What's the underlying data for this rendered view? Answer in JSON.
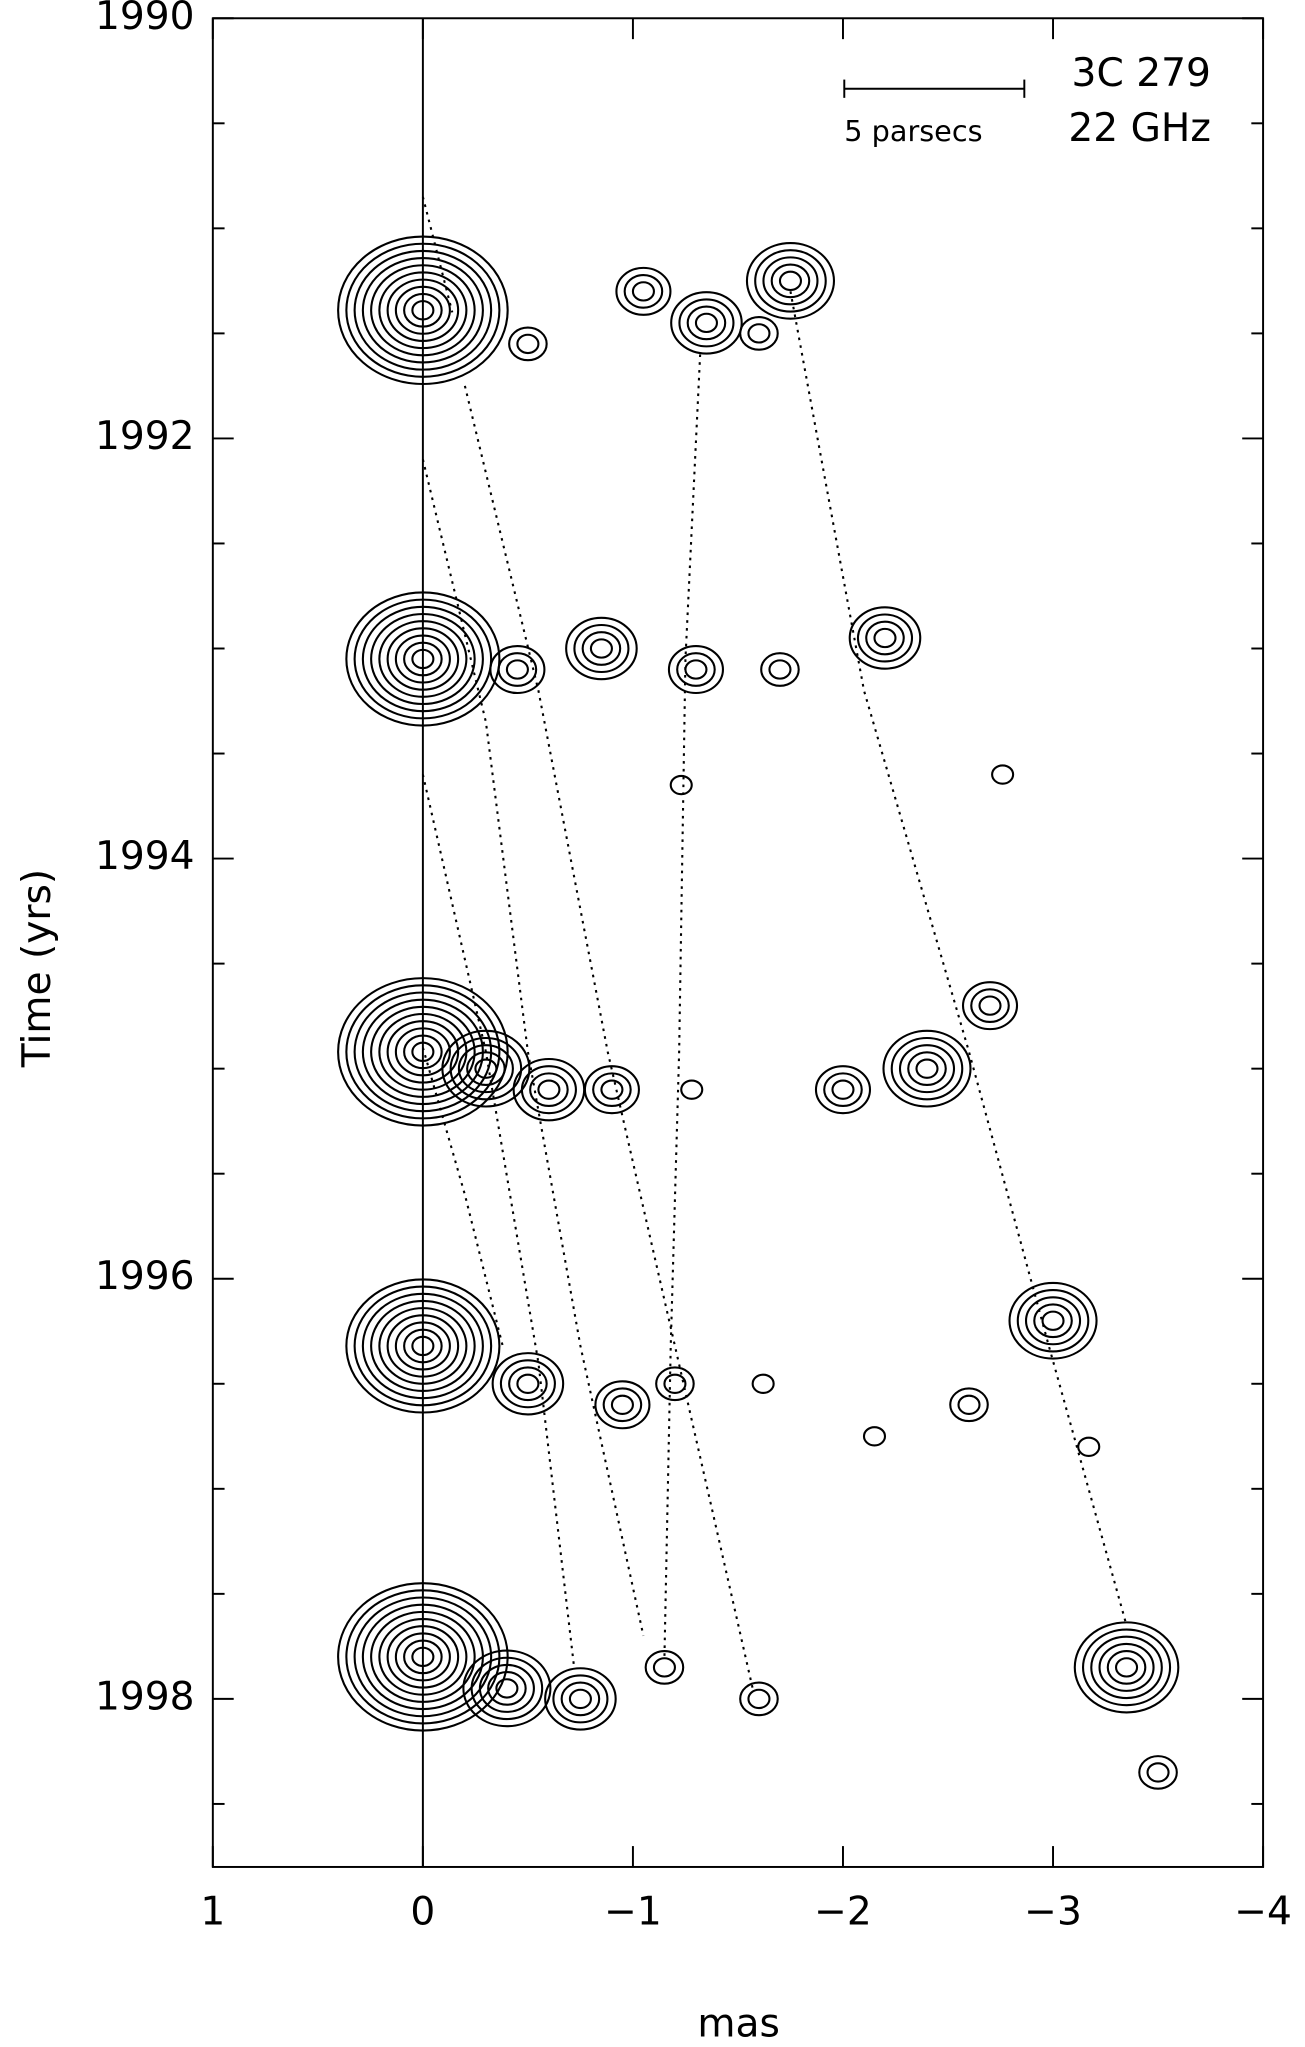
{
  "chart_data": {
    "type": "contour-map",
    "title": "3C 279",
    "subtitle": "22 GHz",
    "scale_bar_label": "5 parsecs",
    "x_label": "mas",
    "y_label": "Time (yrs)",
    "xlim": [
      1,
      -4
    ],
    "ylim": [
      1990,
      1998.8
    ],
    "xticks": [
      1,
      0,
      {
        "value": -1,
        "label": "−1"
      },
      {
        "value": -2,
        "label": "−2"
      },
      {
        "value": -3,
        "label": "−3"
      },
      {
        "value": -4,
        "label": "−4"
      }
    ],
    "yticks": [
      1990,
      1992,
      1994,
      1996,
      1998
    ],
    "yminorticks": [
      1990.5,
      1991,
      1991.5,
      1992.5,
      1993,
      1993.5,
      1994.5,
      1995,
      1995.5,
      1996.5,
      1997,
      1997.5,
      1998.5
    ],
    "zero_line": true,
    "color": "#000000",
    "components": [
      {
        "x": 0,
        "y": 1991.39,
        "levels": 10
      },
      {
        "x": -0.5,
        "y": 1991.55,
        "levels": 2
      },
      {
        "x": -1.05,
        "y": 1991.3,
        "levels": 3
      },
      {
        "x": -1.35,
        "y": 1991.45,
        "levels": 4
      },
      {
        "x": -1.6,
        "y": 1991.5,
        "levels": 2
      },
      {
        "x": -1.75,
        "y": 1991.25,
        "levels": 5
      },
      {
        "x": 0,
        "y": 1993.05,
        "levels": 9
      },
      {
        "x": -0.45,
        "y": 1993.1,
        "levels": 3
      },
      {
        "x": -0.85,
        "y": 1993.0,
        "levels": 4
      },
      {
        "x": -1.3,
        "y": 1993.1,
        "levels": 3
      },
      {
        "x": -1.7,
        "y": 1993.1,
        "levels": 2
      },
      {
        "x": -2.2,
        "y": 1992.95,
        "levels": 4
      },
      {
        "x": -1.23,
        "y": 1993.65,
        "levels": 1
      },
      {
        "x": -2.76,
        "y": 1993.6,
        "levels": 1
      },
      {
        "x": 0,
        "y": 1994.92,
        "levels": 10
      },
      {
        "x": -0.3,
        "y": 1995.0,
        "levels": 5
      },
      {
        "x": -0.6,
        "y": 1995.1,
        "levels": 4
      },
      {
        "x": -0.9,
        "y": 1995.1,
        "levels": 3
      },
      {
        "x": -1.28,
        "y": 1995.1,
        "levels": 1
      },
      {
        "x": -2.0,
        "y": 1995.1,
        "levels": 3
      },
      {
        "x": -2.4,
        "y": 1995.0,
        "levels": 5
      },
      {
        "x": -2.7,
        "y": 1994.7,
        "levels": 3
      },
      {
        "x": 0,
        "y": 1996.32,
        "levels": 9
      },
      {
        "x": -0.5,
        "y": 1996.5,
        "levels": 4
      },
      {
        "x": -0.95,
        "y": 1996.6,
        "levels": 3
      },
      {
        "x": -1.2,
        "y": 1996.5,
        "levels": 2
      },
      {
        "x": -1.62,
        "y": 1996.5,
        "levels": 1
      },
      {
        "x": -2.15,
        "y": 1996.75,
        "levels": 1
      },
      {
        "x": -2.6,
        "y": 1996.6,
        "levels": 2
      },
      {
        "x": -3.0,
        "y": 1996.2,
        "levels": 5
      },
      {
        "x": -3.17,
        "y": 1996.8,
        "levels": 1
      },
      {
        "x": 0,
        "y": 1997.8,
        "levels": 10
      },
      {
        "x": -0.4,
        "y": 1997.95,
        "levels": 5
      },
      {
        "x": -0.75,
        "y": 1998.0,
        "levels": 4
      },
      {
        "x": -1.15,
        "y": 1997.85,
        "levels": 2
      },
      {
        "x": -1.6,
        "y": 1998.0,
        "levels": 2
      },
      {
        "x": -3.35,
        "y": 1997.85,
        "levels": 6
      },
      {
        "x": -3.5,
        "y": 1998.35,
        "levels": 2
      }
    ],
    "tracks": [
      {
        "x": [
          0,
          -0.14
        ],
        "y": [
          1990.85,
          1991.4
        ]
      },
      {
        "x": [
          -0.2,
          -0.55,
          -0.88,
          -1.2,
          -1.57
        ],
        "y": [
          1991.75,
          1993.2,
          1994.92,
          1996.32,
          1997.95
        ]
      },
      {
        "x": [
          0,
          -0.3,
          -0.5,
          -0.75,
          -1.05
        ],
        "y": [
          1992.1,
          1993.35,
          1994.92,
          1996.32,
          1997.7
        ]
      },
      {
        "x": [
          0,
          -0.3,
          -0.55,
          -0.72
        ],
        "y": [
          1993.6,
          1994.92,
          1996.4,
          1997.85
        ]
      },
      {
        "x": [
          0,
          -0.2,
          -0.38
        ],
        "y": [
          1994.9,
          1995.6,
          1996.32
        ]
      },
      {
        "x": [
          -1.32,
          -1.25,
          -1.22,
          -1.18,
          -1.15
        ],
        "y": [
          1991.6,
          1993.05,
          1994.92,
          1996.32,
          1997.8
        ]
      },
      {
        "x": [
          -1.75,
          -2.1,
          -2.6,
          -2.98,
          -3.35
        ],
        "y": [
          1991.3,
          1993.2,
          1994.92,
          1996.32,
          1997.65
        ]
      }
    ]
  }
}
